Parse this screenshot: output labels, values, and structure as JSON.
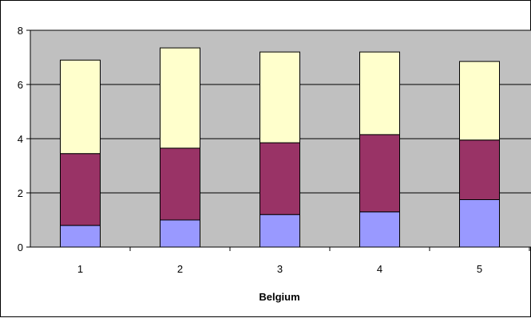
{
  "chart_data": {
    "type": "bar",
    "stacked": true,
    "title": "",
    "xlabel": "Belgium",
    "ylabel": "",
    "categories": [
      "1",
      "2",
      "3",
      "4",
      "5"
    ],
    "ylim": [
      0,
      8
    ],
    "yticks": [
      "0",
      "2",
      "4",
      "6",
      "8"
    ],
    "grid": true,
    "legend": "none",
    "series": [
      {
        "values": [
          0.8,
          1.0,
          1.2,
          1.3,
          1.75
        ],
        "color": "#9999FF"
      },
      {
        "values": [
          2.65,
          2.65,
          2.65,
          2.85,
          2.2
        ],
        "color": "#993366"
      },
      {
        "values": [
          3.45,
          3.7,
          3.35,
          3.05,
          2.9
        ],
        "color": "#FFFFCC"
      }
    ],
    "plot_background": "#C0C0C0"
  }
}
